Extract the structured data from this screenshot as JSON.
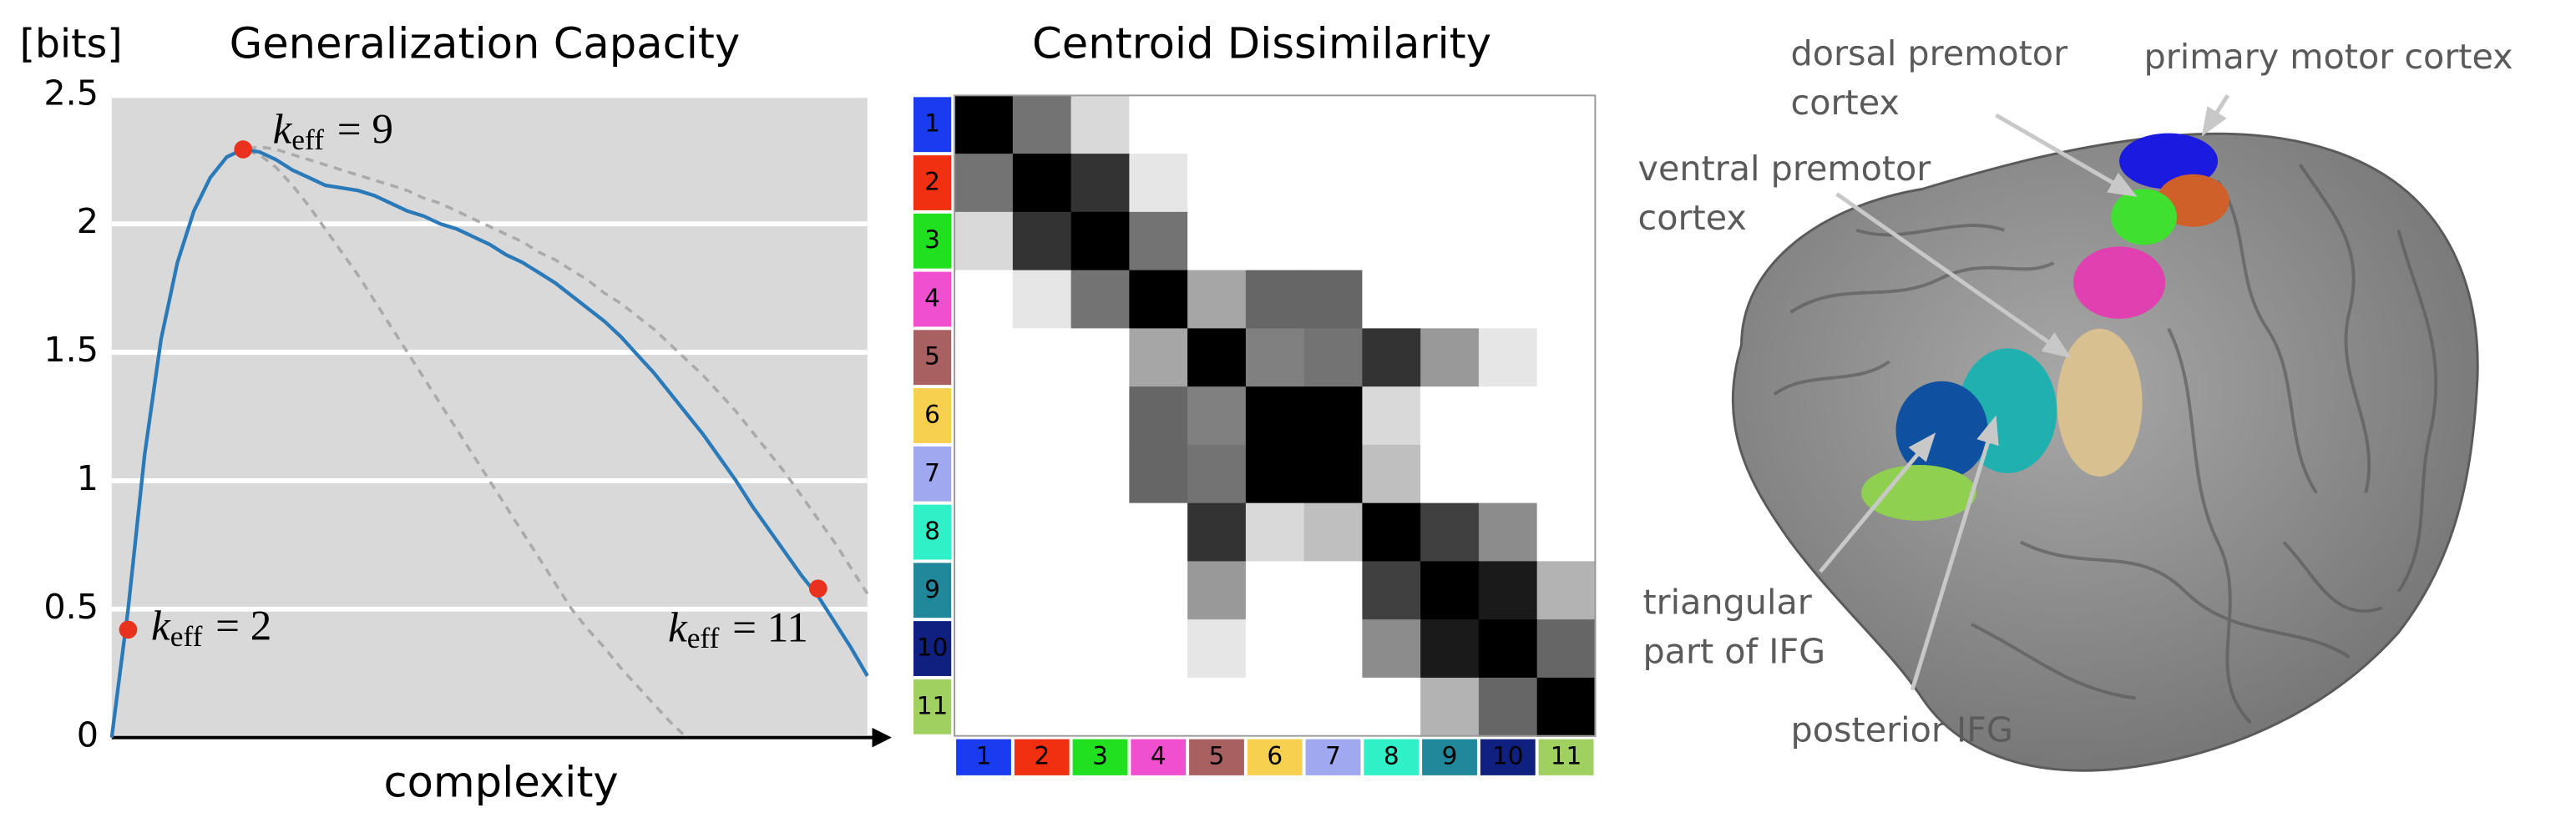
{
  "chart_data": [
    {
      "type": "line",
      "title": "Generalization Capacity",
      "y_label": "[bits]",
      "x_label": "complexity",
      "ylim": [
        0,
        2.5
      ],
      "yticks": [
        0,
        0.5,
        1,
        1.5,
        2,
        2.5
      ],
      "grid": true,
      "background": "#d9d9d9",
      "categories": [
        null,
        null,
        null,
        null,
        null,
        null,
        null,
        null,
        null,
        null,
        null,
        null,
        null,
        null,
        null,
        null,
        null,
        null,
        null,
        null,
        null,
        null,
        null,
        null,
        null,
        null,
        null,
        null,
        null,
        null,
        null,
        null,
        null,
        null,
        null,
        null,
        null,
        null,
        null,
        null,
        null,
        null,
        null,
        null,
        null,
        null,
        null
      ],
      "series": [
        {
          "color": "#aaaaaa",
          "dashed": true,
          "values": [
            0,
            0.5,
            1.1,
            1.55,
            1.85,
            2.05,
            2.18,
            2.26,
            2.29,
            2.27,
            2.22,
            2.15,
            2.07,
            1.98,
            1.89,
            1.8,
            1.7,
            1.6,
            1.5,
            1.4,
            1.3,
            1.2,
            1.1,
            1.0,
            0.9,
            0.8,
            0.7,
            0.6,
            0.5,
            0.42,
            0.35,
            0.27,
            0.2,
            0.13,
            0.06,
            0,
            null,
            null,
            null,
            null,
            null,
            null,
            null,
            null,
            null,
            null,
            null
          ]
        },
        {
          "color": "#aaaaaa",
          "dashed": true,
          "values": [
            0,
            0.5,
            1.1,
            1.55,
            1.85,
            2.05,
            2.18,
            2.26,
            2.29,
            2.3,
            2.29,
            2.27,
            2.25,
            2.23,
            2.21,
            2.19,
            2.17,
            2.15,
            2.13,
            2.1,
            2.08,
            2.05,
            2.02,
            1.99,
            1.96,
            1.93,
            1.89,
            1.86,
            1.82,
            1.78,
            1.73,
            1.69,
            1.64,
            1.59,
            1.53,
            1.47,
            1.41,
            1.34,
            1.27,
            1.19,
            1.11,
            1.03,
            0.94,
            0.85,
            0.76,
            0.66,
            0.56
          ]
        },
        {
          "color": "#2a7ab9",
          "dashed": false,
          "values": [
            0,
            0.5,
            1.1,
            1.55,
            1.85,
            2.05,
            2.18,
            2.26,
            2.29,
            2.28,
            2.25,
            2.21,
            2.18,
            2.15,
            2.14,
            2.13,
            2.11,
            2.08,
            2.05,
            2.03,
            2.0,
            1.98,
            1.95,
            1.92,
            1.88,
            1.85,
            1.81,
            1.77,
            1.72,
            1.67,
            1.62,
            1.56,
            1.49,
            1.42,
            1.34,
            1.26,
            1.18,
            1.09,
            1.0,
            0.9,
            0.81,
            0.72,
            0.63,
            0.55,
            0.45,
            0.35,
            0.24
          ]
        },
        {
          "color": "#e8321e",
          "markers": true,
          "values": [
            null,
            0.42,
            null,
            null,
            null,
            null,
            null,
            null,
            2.29,
            null,
            null,
            null,
            null,
            null,
            null,
            null,
            null,
            null,
            null,
            null,
            null,
            null,
            null,
            null,
            null,
            null,
            null,
            null,
            null,
            null,
            null,
            null,
            null,
            null,
            null,
            null,
            null,
            null,
            null,
            null,
            null,
            null,
            null,
            0.58,
            null,
            null,
            null
          ],
          "labels": [
            null,
            {
              "main": "k",
              "sub": "eff",
              "rest": "= 2"
            },
            null,
            null,
            null,
            null,
            null,
            null,
            {
              "main": "k",
              "sub": "eff",
              "rest": "= 9"
            },
            null,
            null,
            null,
            null,
            null,
            null,
            null,
            null,
            null,
            null,
            null,
            null,
            null,
            null,
            null,
            null,
            null,
            null,
            null,
            null,
            null,
            null,
            null,
            null,
            null,
            null,
            null,
            null,
            null,
            null,
            null,
            null,
            null,
            null,
            {
              "main": "k",
              "sub": "eff",
              "rest": "= 11"
            },
            null,
            null,
            null
          ]
        }
      ]
    },
    {
      "type": "heatmap",
      "title": "Centroid Dissimilarity",
      "categories": [
        "1",
        "2",
        "3",
        "4",
        "5",
        "6",
        "7",
        "8",
        "9",
        "10",
        "11"
      ],
      "label_colors": [
        "#1a3cf0",
        "#f03010",
        "#20e020",
        "#f050d0",
        "#a86060",
        "#f8d050",
        "#a0a8f0",
        "#30f0c8",
        "#20889a",
        "#102080",
        "#a0d060"
      ],
      "zlim": [
        0,
        1
      ],
      "values": [
        [
          0,
          0.45,
          0.85,
          1,
          1,
          1,
          1,
          1,
          1,
          1,
          1
        ],
        [
          0.45,
          0,
          0.2,
          0.9,
          1,
          1,
          1,
          1,
          1,
          1,
          1
        ],
        [
          0.85,
          0.2,
          0,
          0.45,
          1,
          1,
          1,
          1,
          1,
          1,
          1
        ],
        [
          1,
          0.9,
          0.45,
          0,
          0.65,
          0.4,
          0.4,
          1,
          1,
          1,
          1
        ],
        [
          1,
          1,
          1,
          0.65,
          0,
          0.5,
          0.45,
          0.2,
          0.6,
          0.9,
          1
        ],
        [
          1,
          1,
          1,
          0.4,
          0.5,
          0,
          0,
          0.85,
          1,
          1,
          1
        ],
        [
          1,
          1,
          1,
          0.4,
          0.45,
          0,
          0,
          0.75,
          1,
          1,
          1
        ],
        [
          1,
          1,
          1,
          1,
          0.2,
          0.85,
          0.75,
          0,
          0.25,
          0.55,
          1
        ],
        [
          1,
          1,
          1,
          1,
          0.6,
          1,
          1,
          0.25,
          0,
          0.1,
          0.7
        ],
        [
          1,
          1,
          1,
          1,
          0.9,
          1,
          1,
          0.55,
          0.1,
          0,
          0.4
        ],
        [
          1,
          1,
          1,
          1,
          1,
          1,
          1,
          1,
          0.7,
          0.4,
          0
        ]
      ]
    },
    {
      "type": "image",
      "labels": [
        {
          "lines": [
            "dorsal premotor",
            "cortex"
          ]
        },
        {
          "lines": [
            "primary motor cortex"
          ]
        },
        {
          "lines": [
            "ventral premotor",
            "cortex"
          ]
        },
        {
          "lines": [
            "triangular",
            "part of IFG"
          ]
        },
        {
          "lines": [
            "posterior IFG"
          ]
        }
      ]
    }
  ]
}
